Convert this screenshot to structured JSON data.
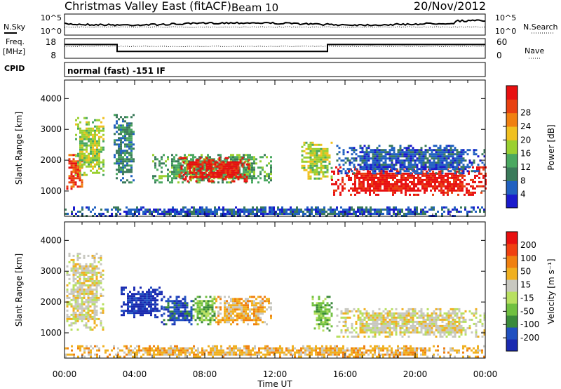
{
  "header": {
    "title": "Christmas Valley East (fitACF)",
    "beam": "Beam 10",
    "date": "20/Nov/2012"
  },
  "sky_panel": {
    "left_label": "N.Sky",
    "right_label": "N.Search",
    "left_ticks": [
      "10^5",
      "10^0"
    ],
    "right_ticks": [
      "10^5",
      "10^0"
    ]
  },
  "freq_panel": {
    "left_label_1": "Freq.",
    "left_label_2": "[MHz]",
    "right_label": "Nave",
    "left_ticks": [
      "18",
      "8"
    ],
    "right_ticks": [
      "60",
      "0"
    ]
  },
  "cpid_panel": {
    "label": "CPID",
    "mode": "normal (fast) -151 IF"
  },
  "power_colorbar": {
    "label": "Power [dB]",
    "ticks": [
      "4",
      "8",
      "12",
      "16",
      "20",
      "24",
      "28"
    ],
    "colors": [
      "#1a1acc",
      "#2060c0",
      "#3a7a5a",
      "#4aa860",
      "#9ad030",
      "#f0c020",
      "#f08010",
      "#e84010",
      "#e81010"
    ]
  },
  "velocity_colorbar": {
    "label": "Velocity [m s⁻¹]",
    "ticks": [
      "200",
      "100",
      "50",
      "15",
      "-15",
      "-50",
      "-100",
      "-200"
    ],
    "colors": [
      "#1a2ab0",
      "#2050c0",
      "#3a8a3a",
      "#70c040",
      "#b8e060",
      "#c8c8c0",
      "#f0b020",
      "#f08010",
      "#f04010",
      "#e81010"
    ]
  },
  "axes": {
    "ylabel": "Slant Range [km]",
    "xlabel": "Time UT",
    "x_ticks": [
      "00:00",
      "04:00",
      "08:00",
      "12:00",
      "16:00",
      "20:00",
      "00:00"
    ],
    "y_ticks": [
      "1000",
      "2000",
      "3000",
      "4000"
    ]
  },
  "chart_data": [
    {
      "type": "line",
      "name": "freq",
      "x_hours": [
        0,
        3.0,
        3.0,
        15.0,
        15.0,
        24
      ],
      "y": [
        15,
        15,
        11.5,
        11.5,
        15,
        15
      ],
      "ylim": [
        8,
        18
      ]
    },
    {
      "type": "heatmap",
      "name": "power",
      "xlim_hours": [
        0,
        24
      ],
      "ylim_km": [
        180,
        4600
      ],
      "regions": [
        {
          "x": [
            0.1,
            1.0
          ],
          "y": [
            1100,
            2200
          ],
          "level": 7
        },
        {
          "x": [
            0.6,
            2.2
          ],
          "y": [
            1500,
            3400
          ],
          "level": 4
        },
        {
          "x": [
            2.8,
            4.0
          ],
          "y": [
            1300,
            3500
          ],
          "level": 2
        },
        {
          "x": [
            5.0,
            11.8
          ],
          "y": [
            1300,
            2200
          ],
          "level": 3
        },
        {
          "x": [
            6.5,
            10.5
          ],
          "y": [
            1300,
            2100
          ],
          "level": 8
        },
        {
          "x": [
            13.5,
            15.2
          ],
          "y": [
            1400,
            2600
          ],
          "level": 4
        },
        {
          "x": [
            15.2,
            24
          ],
          "y": [
            850,
            1800
          ],
          "level": 8
        },
        {
          "x": [
            15.5,
            24
          ],
          "y": [
            1600,
            2500
          ],
          "level": 1
        },
        {
          "x": [
            0,
            24
          ],
          "y": [
            200,
            500
          ],
          "level": 1
        }
      ]
    },
    {
      "type": "heatmap",
      "name": "velocity",
      "xlim_hours": [
        0,
        24
      ],
      "ylim_km": [
        180,
        4600
      ],
      "regions": [
        {
          "x": [
            0.1,
            2.2
          ],
          "y": [
            1100,
            3600
          ],
          "level": 5
        },
        {
          "x": [
            3.2,
            5.5
          ],
          "y": [
            1500,
            2500
          ],
          "level": 0
        },
        {
          "x": [
            5.5,
            7.3
          ],
          "y": [
            1300,
            2200
          ],
          "level": 1
        },
        {
          "x": [
            7.3,
            8.6
          ],
          "y": [
            1300,
            2200
          ],
          "level": 3
        },
        {
          "x": [
            8.6,
            11.8
          ],
          "y": [
            1300,
            2200
          ],
          "level": 6
        },
        {
          "x": [
            14.1,
            15.2
          ],
          "y": [
            1100,
            2200
          ],
          "level": 3
        },
        {
          "x": [
            15.5,
            24
          ],
          "y": [
            900,
            1800
          ],
          "level": 5
        },
        {
          "x": [
            0,
            24
          ],
          "y": [
            200,
            600
          ],
          "level": 6
        }
      ]
    }
  ]
}
